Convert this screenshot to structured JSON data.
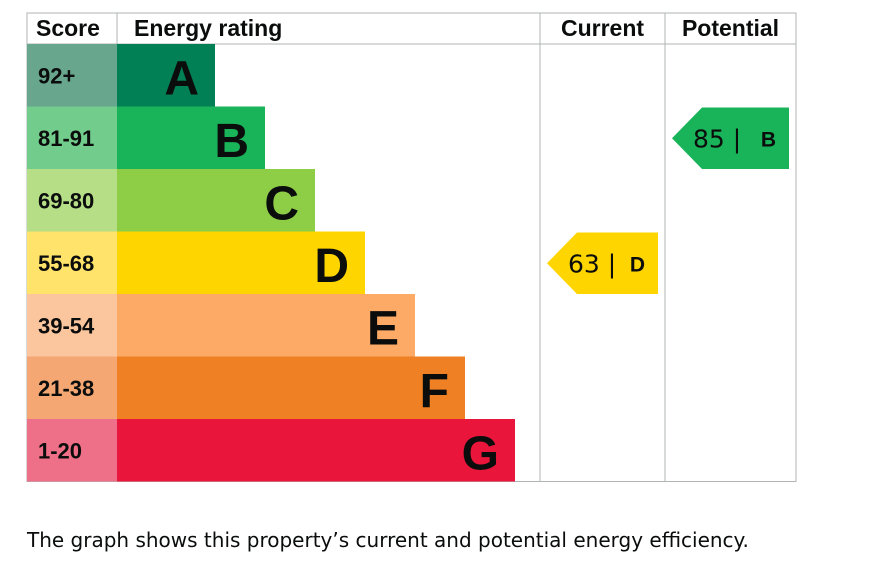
{
  "chart_data": {
    "type": "bar",
    "headers": {
      "score": "Score",
      "energy_rating": "Energy rating",
      "current": "Current",
      "potential": "Potential"
    },
    "bands": [
      {
        "letter": "A",
        "range": "92+",
        "color": "#008054",
        "score_bg": "#68a68e"
      },
      {
        "letter": "B",
        "range": "81-91",
        "color": "#19b459",
        "score_bg": "#72cc8c"
      },
      {
        "letter": "C",
        "range": "69-80",
        "color": "#8dce46",
        "score_bg": "#b6de87"
      },
      {
        "letter": "D",
        "range": "55-68",
        "color": "#ffd500",
        "score_bg": "#ffe36a"
      },
      {
        "letter": "E",
        "range": "39-54",
        "color": "#fcaa65",
        "score_bg": "#fbc69d"
      },
      {
        "letter": "F",
        "range": "21-38",
        "color": "#ef8023",
        "score_bg": "#f4a772"
      },
      {
        "letter": "G",
        "range": "1-20",
        "color": "#e9153b",
        "score_bg": "#ee6f88"
      }
    ],
    "current": {
      "score": 63,
      "band": "D",
      "label": "63 |",
      "color": "#ffd500"
    },
    "potential": {
      "score": 85,
      "band": "B",
      "label": "85 |",
      "color": "#19b459"
    }
  },
  "caption": "The graph shows this property’s current and potential energy efficiency."
}
